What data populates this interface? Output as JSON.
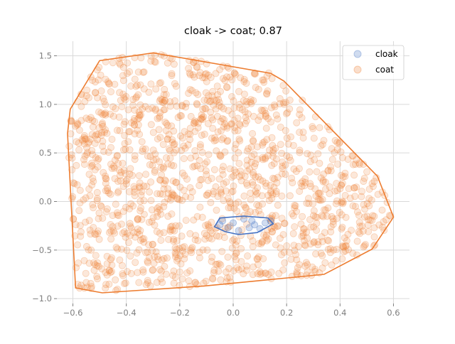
{
  "chart_data": {
    "type": "scatter",
    "title": "cloak -> coat; 0.87",
    "xlabel": "",
    "ylabel": "",
    "xlim": [
      -0.66,
      0.66
    ],
    "ylim": [
      -1.05,
      1.65
    ],
    "xticks": [
      -0.6,
      -0.4,
      -0.2,
      0.0,
      0.2,
      0.4,
      0.6
    ],
    "xtick_labels": [
      "−0.6",
      "−0.4",
      "−0.2",
      "0.0",
      "0.2",
      "0.4",
      "0.6"
    ],
    "yticks": [
      -1.0,
      -0.5,
      0.0,
      0.5,
      1.0,
      1.5
    ],
    "ytick_labels": [
      "−1.0",
      "−0.5",
      "0.0",
      "0.5",
      "1.0",
      "1.5"
    ],
    "grid": true,
    "legend_position": "top-right",
    "series": [
      {
        "name": "cloak",
        "color": "#4472c4",
        "points": [
          [
            -0.04,
            -0.2
          ],
          [
            0.0,
            -0.22
          ],
          [
            0.04,
            -0.18
          ],
          [
            0.08,
            -0.24
          ],
          [
            0.12,
            -0.22
          ],
          [
            -0.02,
            -0.27
          ],
          [
            0.02,
            -0.3
          ],
          [
            0.06,
            -0.27
          ],
          [
            0.1,
            -0.28
          ],
          [
            0.14,
            -0.2
          ],
          [
            -0.05,
            -0.24
          ],
          [
            0.07,
            -0.2
          ]
        ],
        "hull": [
          [
            -0.07,
            -0.26
          ],
          [
            -0.05,
            -0.17
          ],
          [
            0.04,
            -0.15
          ],
          [
            0.13,
            -0.17
          ],
          [
            0.15,
            -0.23
          ],
          [
            0.09,
            -0.32
          ],
          [
            0.02,
            -0.34
          ],
          [
            -0.03,
            -0.31
          ]
        ]
      },
      {
        "name": "coat",
        "color": "#ed7d31",
        "hull": [
          [
            -0.61,
            0.95
          ],
          [
            -0.5,
            1.45
          ],
          [
            -0.3,
            1.53
          ],
          [
            0.14,
            1.32
          ],
          [
            0.19,
            1.24
          ],
          [
            0.54,
            0.26
          ],
          [
            0.6,
            -0.16
          ],
          [
            0.52,
            -0.49
          ],
          [
            0.34,
            -0.75
          ],
          [
            -0.11,
            -0.87
          ],
          [
            -0.49,
            -0.94
          ],
          [
            -0.59,
            -0.89
          ],
          [
            -0.62,
            0.7
          ]
        ],
        "sample_count": 1400
      }
    ]
  }
}
